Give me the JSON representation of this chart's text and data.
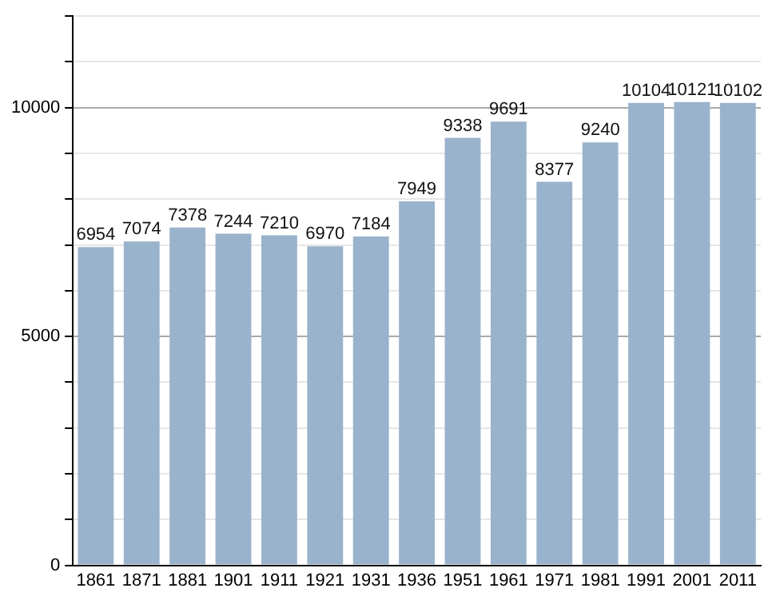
{
  "chart_data": {
    "type": "bar",
    "categories": [
      "1861",
      "1871",
      "1881",
      "1901",
      "1911",
      "1921",
      "1931",
      "1936",
      "1951",
      "1961",
      "1971",
      "1981",
      "1991",
      "2001",
      "2011"
    ],
    "values": [
      6954,
      7074,
      7378,
      7244,
      7210,
      6970,
      7184,
      7949,
      9338,
      9691,
      8377,
      9240,
      10104,
      10121,
      10102
    ],
    "color": "#9ab3cc",
    "data_labels": true,
    "grid": "y",
    "ylim": [
      0,
      12000
    ],
    "yticks": [
      0,
      {
        "value": 1000,
        "label": null
      },
      {
        "value": 2000,
        "label": null
      },
      {
        "value": 3000,
        "label": null
      },
      {
        "value": 4000,
        "label": null
      },
      5000,
      {
        "value": 6000,
        "label": null
      },
      {
        "value": 7000,
        "label": null
      },
      {
        "value": 8000,
        "label": null
      },
      {
        "value": 9000,
        "label": null
      },
      10000,
      {
        "value": 11000,
        "label": null
      },
      {
        "value": 12000,
        "label": null
      }
    ]
  }
}
